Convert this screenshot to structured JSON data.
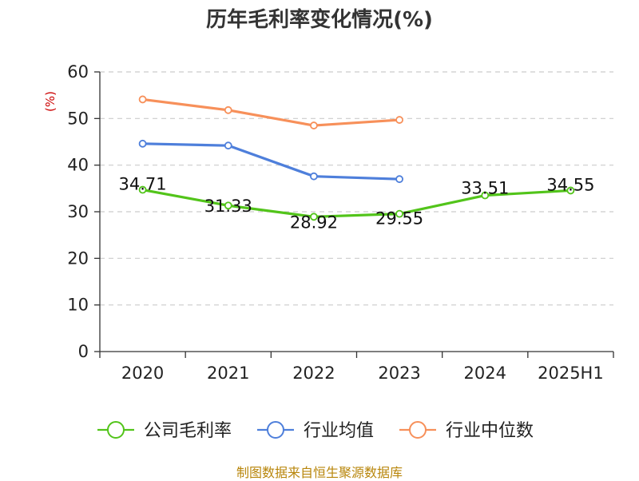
{
  "title": "历年毛利率变化情况(%)",
  "source": "制图数据来自恒生聚源数据库",
  "chart_data": {
    "type": "line",
    "title": "历年毛利率变化情况(%)",
    "ylabel": "(%)",
    "categories": [
      "2020",
      "2021",
      "2022",
      "2023",
      "2024",
      "2025H1"
    ],
    "ylim": [
      0,
      60
    ],
    "yticks": [
      0,
      10,
      20,
      30,
      40,
      50,
      60
    ],
    "grid": true,
    "legend_position": "bottom",
    "series": [
      {
        "name": "公司毛利率",
        "color": "#52c41a",
        "values": [
          34.71,
          31.33,
          28.92,
          29.55,
          33.51,
          34.55
        ],
        "labels": [
          "34.71",
          "31.33",
          "28.92",
          "29.55",
          "33.51",
          "34.55"
        ]
      },
      {
        "name": "行业均值",
        "color": "#4e7fdb",
        "values": [
          44.6,
          44.2,
          37.6,
          37.0,
          null,
          null
        ]
      },
      {
        "name": "行业中位数",
        "color": "#f7905a",
        "values": [
          54.1,
          51.8,
          48.5,
          49.7,
          null,
          null
        ]
      }
    ]
  }
}
